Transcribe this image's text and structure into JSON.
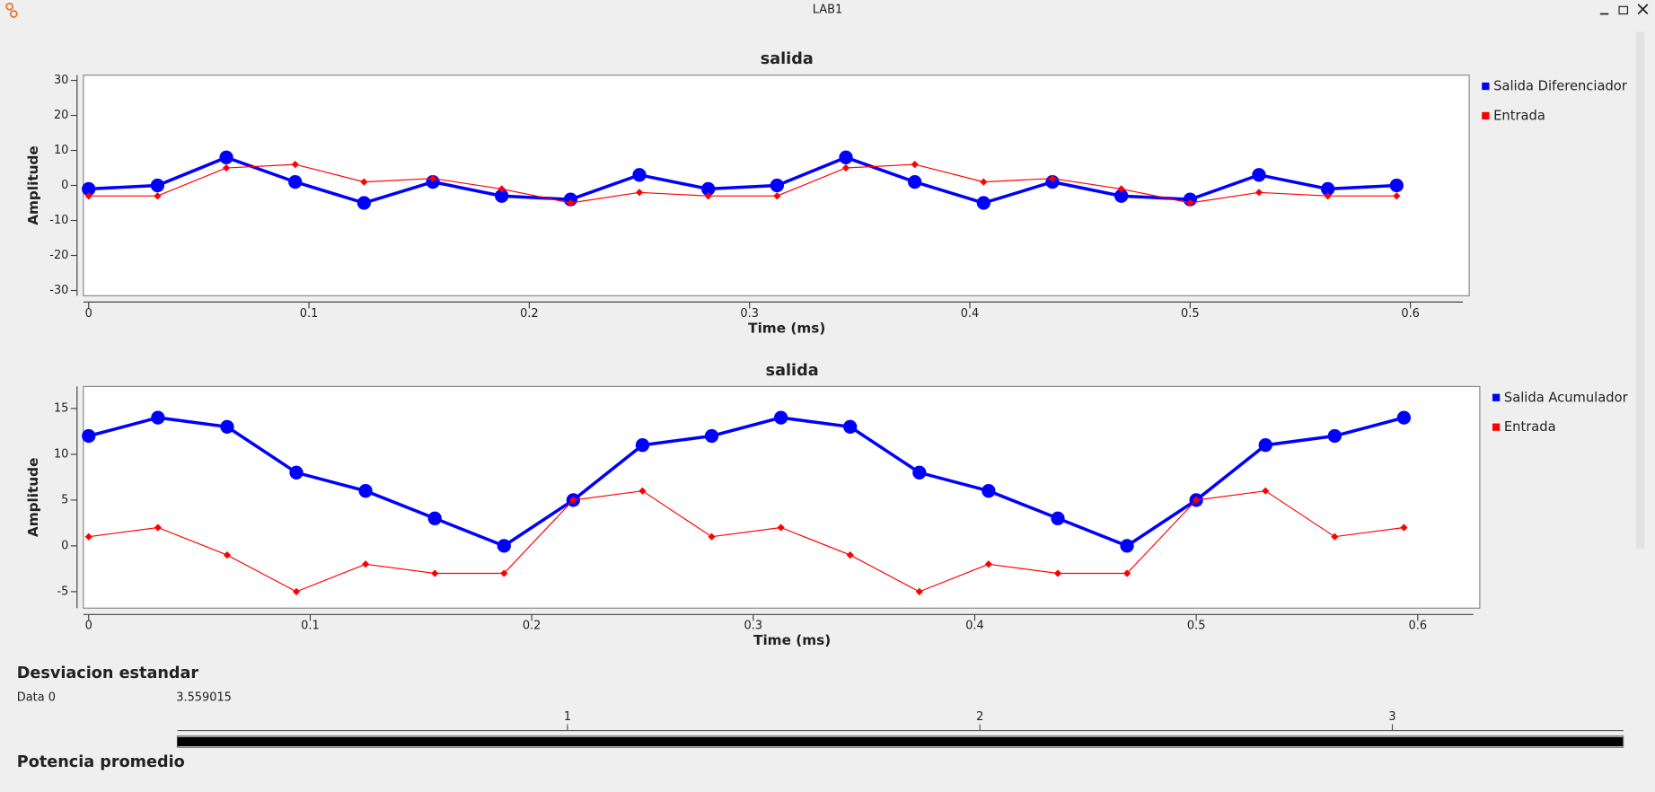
{
  "window": {
    "title": "LAB1"
  },
  "chart_data": [
    {
      "type": "line",
      "title": "salida",
      "x_label": "Time (ms)",
      "y_label": "Amplitude",
      "x": [
        0,
        0.03125,
        0.0625,
        0.09375,
        0.125,
        0.15625,
        0.1875,
        0.21875,
        0.25,
        0.28125,
        0.3125,
        0.34375,
        0.375,
        0.40625,
        0.4375,
        0.46875,
        0.5,
        0.53125,
        0.5625,
        0.59375
      ],
      "series": [
        {
          "name": "Salida Diferenciador",
          "color": "#0000ff",
          "values": [
            -1,
            0,
            8,
            1,
            -5,
            1,
            -3,
            -4,
            3,
            -1,
            0,
            8,
            1,
            -5,
            1,
            -3,
            -4,
            3,
            -1,
            0
          ]
        },
        {
          "name": "Entrada",
          "color": "#ff0000",
          "values": [
            -3,
            -3,
            5,
            6,
            1,
            2,
            -1,
            -5,
            -2,
            -3,
            -3,
            5,
            6,
            1,
            2,
            -1,
            -5,
            -2,
            -3,
            -3
          ]
        }
      ],
      "xlim": [
        -0.0024,
        0.6267
      ],
      "ylim": [
        -31.5,
        31.5
      ],
      "xticks": [
        0,
        0.1,
        0.2,
        0.3,
        0.4,
        0.5,
        0.6
      ],
      "yticks": [
        -30,
        -20,
        -10,
        0,
        10,
        20,
        30
      ],
      "grid": false,
      "legend": "right"
    },
    {
      "type": "line",
      "title": "salida",
      "x_label": "Time (ms)",
      "y_label": "Amplitude",
      "x": [
        0,
        0.03125,
        0.0625,
        0.09375,
        0.125,
        0.15625,
        0.1875,
        0.21875,
        0.25,
        0.28125,
        0.3125,
        0.34375,
        0.375,
        0.40625,
        0.4375,
        0.46875,
        0.5,
        0.53125,
        0.5625,
        0.59375
      ],
      "series": [
        {
          "name": "Salida Acumulador",
          "color": "#0000ff",
          "values": [
            12,
            14,
            13,
            8,
            6,
            3,
            0,
            5,
            11,
            12,
            14,
            13,
            8,
            6,
            3,
            0,
            5,
            11,
            12,
            14
          ]
        },
        {
          "name": "Entrada",
          "color": "#ff0000",
          "values": [
            1,
            2,
            -1,
            -5,
            -2,
            -3,
            -3,
            5,
            6,
            1,
            2,
            -1,
            -5,
            -2,
            -3,
            -3,
            5,
            6,
            1,
            2
          ]
        }
      ],
      "xlim": [
        -0.0024,
        0.628
      ],
      "ylim": [
        -6.8,
        17.4
      ],
      "xticks": [
        0,
        0.1,
        0.2,
        0.3,
        0.4,
        0.5,
        0.6
      ],
      "yticks": [
        -5,
        0,
        5,
        10,
        15
      ],
      "grid": false,
      "legend": "right"
    }
  ],
  "number_sink": {
    "title": "Desviacion estandar",
    "label": "Data 0",
    "value": 3.559015,
    "lim": [
      0.054,
      3.56
    ],
    "ticks": [
      1,
      2,
      3
    ]
  },
  "next_section": {
    "title": "Potencia promedio"
  }
}
